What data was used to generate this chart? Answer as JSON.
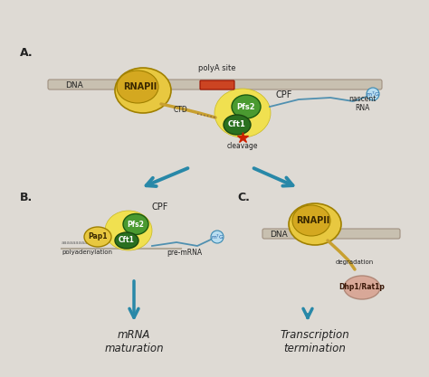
{
  "bg_color": "#dedad4",
  "panel_A_label": "A.",
  "panel_B_label": "B.",
  "panel_C_label": "C.",
  "dna_color": "#c8c0b0",
  "dna_border": "#a09080",
  "polya_color": "#cc4422",
  "rnapii_outer": "#e8c840",
  "rnapii_inner": "#d4a820",
  "cpf_halo": "#f0e050",
  "pfs2_color": "#4a9a30",
  "cft1_color": "#2a7020",
  "pap1_color": "#e8c840",
  "dhp1_color": "#d8a898",
  "arrow_color": "#2888a8",
  "rna_color": "#5090b0",
  "cleavage_star": "#cc2200",
  "text_color": "#222222",
  "ctd_color": "#c8a030"
}
